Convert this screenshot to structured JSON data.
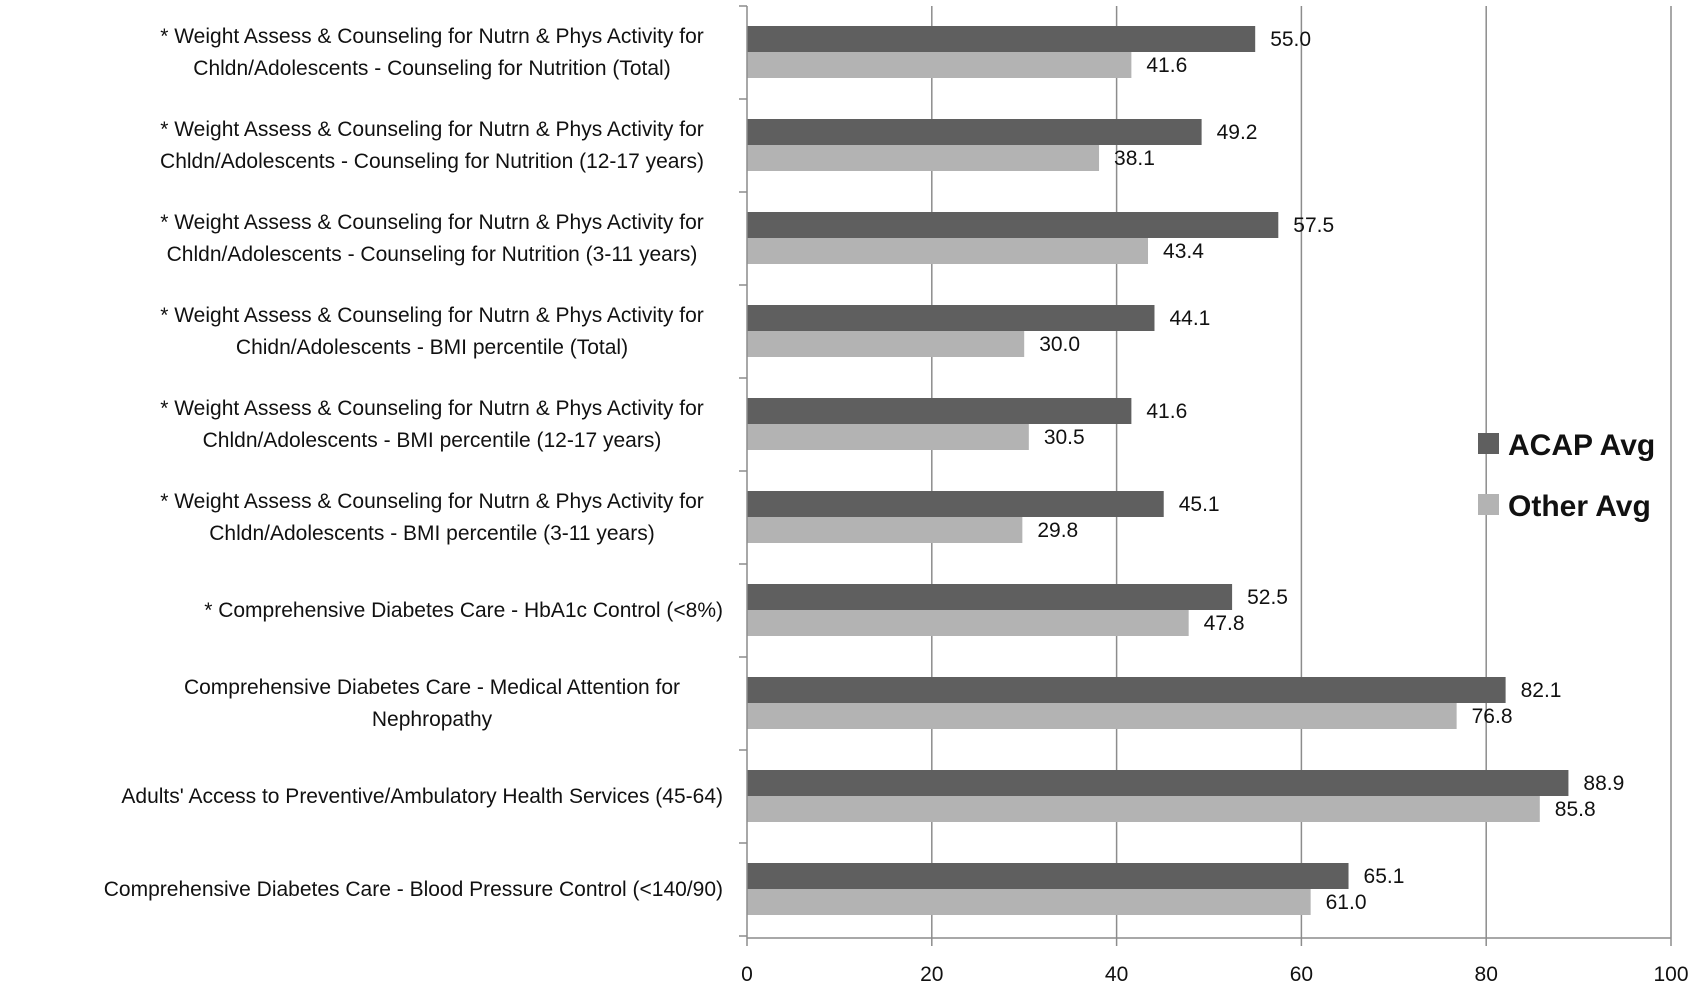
{
  "chart_data": {
    "type": "bar",
    "orientation": "horizontal",
    "categories": [
      [
        "* Weight Assess & Counseling for Nutrn & Phys Activity for",
        "Chldn/Adolescents - Counseling for Nutrition (Total)"
      ],
      [
        "* Weight Assess & Counseling for Nutrn & Phys Activity for",
        "Chldn/Adolescents - Counseling for Nutrition (12-17 years)"
      ],
      [
        "* Weight Assess & Counseling for Nutrn & Phys Activity for",
        "Chldn/Adolescents - Counseling for Nutrition (3-11 years)"
      ],
      [
        "* Weight Assess & Counseling for Nutrn & Phys Activity for",
        "Chidn/Adolescents - BMI percentile (Total)"
      ],
      [
        "* Weight Assess & Counseling for Nutrn & Phys Activity for",
        "Chldn/Adolescents - BMI percentile (12-17 years)"
      ],
      [
        "* Weight Assess & Counseling for Nutrn & Phys Activity for",
        "Chldn/Adolescents - BMI percentile (3-11 years)"
      ],
      [
        "* Comprehensive Diabetes Care - HbA1c Control (<8%)"
      ],
      [
        "Comprehensive Diabetes Care - Medical Attention for",
        "Nephropathy"
      ],
      [
        "Adults' Access to Preventive/Ambulatory Health Services (45-64)"
      ],
      [
        "Comprehensive Diabetes Care - Blood Pressure Control (<140/90)"
      ]
    ],
    "series": [
      {
        "name": "ACAP Avg",
        "color": "#5f5f5f",
        "values": [
          55.0,
          49.2,
          57.5,
          44.1,
          41.6,
          45.1,
          52.5,
          82.1,
          88.9,
          65.1
        ]
      },
      {
        "name": "Other Avg",
        "color": "#b3b3b3",
        "values": [
          41.6,
          38.1,
          43.4,
          30.0,
          30.5,
          29.8,
          47.8,
          76.8,
          85.8,
          61.0
        ]
      }
    ],
    "xlim": [
      0,
      100
    ],
    "xticks": [
      0,
      20,
      40,
      60,
      80,
      100
    ],
    "value_label_decimals": 1,
    "grid": "vertical",
    "legend_position": "right"
  }
}
